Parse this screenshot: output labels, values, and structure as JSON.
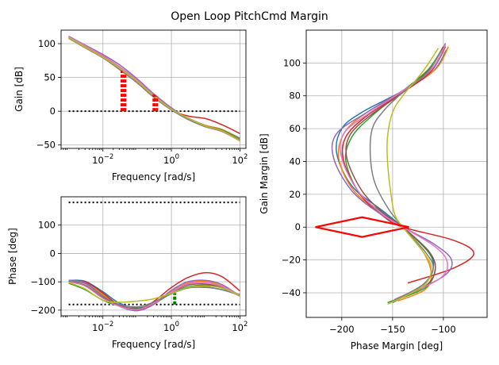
{
  "figure": {
    "title": "Open Loop PitchCmd Margin"
  },
  "colors": {
    "series": [
      "#1f77b4",
      "#ff7f0e",
      "#2ca02c",
      "#d62728",
      "#9467bd",
      "#8c564b",
      "#e377c2",
      "#7f7f7f",
      "#bcbd22"
    ],
    "margin_marker": "#ff0000",
    "phase_marker": "#008000",
    "reference": "#000000",
    "grid": "#b0b0b0"
  },
  "chart_data": [
    {
      "id": "gain",
      "type": "line",
      "xscale": "log",
      "xlabel": "Frequency [rad/s]",
      "ylabel": "Gain [dB]",
      "xlim": [
        0.0006,
        150
      ],
      "ylim": [
        -55,
        120
      ],
      "xticks": [
        0.01,
        1,
        100
      ],
      "xtick_labels": [
        "10",
        "10",
        "10"
      ],
      "xtick_exponents": [
        "−2",
        "0",
        "2"
      ],
      "yticks": [
        -50,
        0,
        50,
        100
      ],
      "ytick_labels": [
        "−50",
        "0",
        "50",
        "100"
      ],
      "grid": true,
      "series": [
        {
          "x": [
            0.001,
            0.003,
            0.01,
            0.03,
            0.1,
            0.3,
            1,
            3,
            10,
            30,
            100
          ],
          "y": [
            109,
            95,
            80,
            63,
            43,
            22,
            3,
            -10,
            -21,
            -27,
            -40
          ]
        },
        {
          "x": [
            0.001,
            0.003,
            0.01,
            0.03,
            0.1,
            0.3,
            1,
            3,
            10,
            30,
            100
          ],
          "y": [
            108,
            94,
            79,
            62,
            42,
            21,
            2,
            -11,
            -21,
            -27,
            -41
          ]
        },
        {
          "x": [
            0.001,
            0.003,
            0.01,
            0.03,
            0.1,
            0.3,
            1,
            3,
            10,
            30,
            100
          ],
          "y": [
            109,
            96,
            81,
            66,
            46,
            24,
            3,
            -11,
            -22,
            -28,
            -42
          ]
        },
        {
          "x": [
            0.001,
            0.003,
            0.01,
            0.03,
            0.1,
            0.3,
            1,
            3,
            10,
            30,
            100
          ],
          "y": [
            110,
            96,
            82,
            66,
            45,
            23,
            2,
            -7,
            -11,
            -20,
            -33
          ]
        },
        {
          "x": [
            0.001,
            0.003,
            0.01,
            0.03,
            0.1,
            0.3,
            1,
            3,
            10,
            30,
            100
          ],
          "y": [
            111,
            98,
            84,
            69,
            48,
            26,
            5,
            -11,
            -23,
            -30,
            -44
          ]
        },
        {
          "x": [
            0.001,
            0.003,
            0.01,
            0.03,
            0.1,
            0.3,
            1,
            3,
            10,
            30,
            100
          ],
          "y": [
            109,
            95,
            80,
            64,
            44,
            22,
            2,
            -11,
            -22,
            -29,
            -43
          ]
        },
        {
          "x": [
            0.001,
            0.003,
            0.01,
            0.03,
            0.1,
            0.3,
            1,
            3,
            10,
            30,
            100
          ],
          "y": [
            110,
            97,
            82,
            66,
            46,
            24,
            3,
            -11,
            -22,
            -29,
            -43
          ]
        },
        {
          "x": [
            0.001,
            0.003,
            0.01,
            0.03,
            0.1,
            0.3,
            1,
            3,
            10,
            30,
            100
          ],
          "y": [
            108,
            94,
            79,
            62,
            42,
            21,
            2,
            -12,
            -23,
            -29,
            -44
          ]
        },
        {
          "x": [
            0.001,
            0.003,
            0.01,
            0.03,
            0.1,
            0.3,
            1,
            3,
            10,
            30,
            100
          ],
          "y": [
            109,
            95,
            80,
            64,
            44,
            23,
            3,
            -10,
            -22,
            -29,
            -44
          ]
        }
      ],
      "reference_lines": [
        {
          "y": 0
        }
      ],
      "margin_markers": [
        {
          "x": 0.035,
          "y_from": 0,
          "y_to": 60
        },
        {
          "x": 0.04,
          "y_from": 0,
          "y_to": 57
        },
        {
          "x": 0.045,
          "y_from": 0,
          "y_to": 54
        },
        {
          "x": 0.3,
          "y_from": 0,
          "y_to": 25
        },
        {
          "x": 0.33,
          "y_from": 0,
          "y_to": 24
        },
        {
          "x": 0.38,
          "y_from": 0,
          "y_to": 22
        }
      ]
    },
    {
      "id": "phase",
      "type": "line",
      "xscale": "log",
      "xlabel": "Frequency [rad/s]",
      "ylabel": "Phase [deg]",
      "xlim": [
        0.0006,
        150
      ],
      "ylim": [
        -220,
        200
      ],
      "xticks": [
        0.01,
        1,
        100
      ],
      "xtick_labels": [
        "10",
        "10",
        "10"
      ],
      "xtick_exponents": [
        "−2",
        "0",
        "2"
      ],
      "yticks": [
        -200,
        -100,
        0,
        100
      ],
      "ytick_labels": [
        "−200",
        "−100",
        "0",
        "100"
      ],
      "grid": true,
      "series": [
        {
          "x": [
            0.001,
            0.003,
            0.01,
            0.03,
            0.1,
            0.3,
            1,
            3,
            10,
            30,
            100
          ],
          "y": [
            -95,
            -98,
            -135,
            -175,
            -192,
            -178,
            -140,
            -118,
            -118,
            -128,
            -145
          ]
        },
        {
          "x": [
            0.001,
            0.003,
            0.01,
            0.03,
            0.1,
            0.3,
            1,
            3,
            10,
            30,
            100
          ],
          "y": [
            -97,
            -105,
            -145,
            -182,
            -198,
            -180,
            -135,
            -105,
            -98,
            -115,
            -150
          ]
        },
        {
          "x": [
            0.001,
            0.003,
            0.01,
            0.03,
            0.1,
            0.3,
            1,
            3,
            10,
            30,
            100
          ],
          "y": [
            -105,
            -128,
            -165,
            -185,
            -195,
            -175,
            -142,
            -118,
            -112,
            -122,
            -150
          ]
        },
        {
          "x": [
            0.001,
            0.003,
            0.01,
            0.03,
            0.1,
            0.3,
            1,
            3,
            10,
            30,
            100
          ],
          "y": [
            -96,
            -100,
            -140,
            -182,
            -200,
            -170,
            -120,
            -85,
            -68,
            -82,
            -132
          ]
        },
        {
          "x": [
            0.001,
            0.003,
            0.01,
            0.03,
            0.1,
            0.3,
            1,
            3,
            10,
            30,
            100
          ],
          "y": [
            -95,
            -103,
            -150,
            -186,
            -202,
            -180,
            -130,
            -100,
            -95,
            -110,
            -150
          ]
        },
        {
          "x": [
            0.001,
            0.003,
            0.01,
            0.03,
            0.1,
            0.3,
            1,
            3,
            10,
            30,
            100
          ],
          "y": [
            -98,
            -112,
            -155,
            -183,
            -196,
            -174,
            -136,
            -112,
            -108,
            -120,
            -146
          ]
        },
        {
          "x": [
            0.001,
            0.003,
            0.01,
            0.03,
            0.1,
            0.3,
            1,
            3,
            10,
            30,
            100
          ],
          "y": [
            -100,
            -115,
            -158,
            -186,
            -198,
            -176,
            -136,
            -108,
            -103,
            -116,
            -148
          ]
        },
        {
          "x": [
            0.001,
            0.003,
            0.01,
            0.03,
            0.1,
            0.3,
            1,
            3,
            10,
            30,
            100
          ],
          "y": [
            -97,
            -106,
            -150,
            -180,
            -188,
            -172,
            -142,
            -122,
            -120,
            -128,
            -148
          ]
        },
        {
          "x": [
            0.001,
            0.003,
            0.01,
            0.03,
            0.1,
            0.3,
            1,
            3,
            10,
            30,
            100
          ],
          "y": [
            -102,
            -125,
            -165,
            -172,
            -168,
            -160,
            -140,
            -120,
            -115,
            -122,
            -148
          ]
        }
      ],
      "reference_lines": [
        {
          "y": 180
        },
        {
          "y": -180
        }
      ],
      "margin_markers": [
        {
          "x": 1.2,
          "y_from": -180,
          "y_to": -142
        },
        {
          "x": 1.3,
          "y_from": -180,
          "y_to": -140
        }
      ]
    },
    {
      "id": "nichols",
      "type": "line",
      "xscale": "linear",
      "xlabel": "Phase Margin [deg]",
      "ylabel": "Gain Margin [dB]",
      "xlim": [
        -235,
        -57
      ],
      "ylim": [
        -55,
        120
      ],
      "xticks": [
        -200,
        -150,
        -100
      ],
      "xtick_labels": [
        "−200",
        "−150",
        "−100"
      ],
      "yticks": [
        -40,
        -20,
        0,
        20,
        40,
        60,
        80,
        100
      ],
      "ytick_labels": [
        "−40",
        "−20",
        "0",
        "20",
        "40",
        "60",
        "80",
        "100"
      ],
      "grid": true,
      "series": [
        {
          "x": [
            -97,
            -110,
            -140,
            -180,
            -200,
            -205,
            -190,
            -160,
            -140,
            -115,
            -110,
            -120,
            -150
          ],
          "y": [
            108,
            95,
            83,
            70,
            60,
            45,
            25,
            10,
            0,
            -15,
            -25,
            -35,
            -46
          ]
        },
        {
          "x": [
            -95,
            -108,
            -140,
            -175,
            -197,
            -203,
            -188,
            -160,
            -140,
            -120,
            -112,
            -118,
            -145
          ],
          "y": [
            110,
            96,
            83,
            70,
            58,
            42,
            22,
            8,
            0,
            -15,
            -28,
            -38,
            -45
          ]
        },
        {
          "x": [
            -100,
            -115,
            -142,
            -170,
            -190,
            -196,
            -182,
            -158,
            -140,
            -115,
            -108,
            -118,
            -155
          ],
          "y": [
            110,
            96,
            82,
            68,
            55,
            40,
            20,
            8,
            0,
            -15,
            -25,
            -37,
            -46
          ]
        },
        {
          "x": [
            -98,
            -112,
            -140,
            -175,
            -196,
            -198,
            -182,
            -160,
            -140,
            -90,
            -70,
            -90,
            -135
          ],
          "y": [
            110,
            95,
            82,
            68,
            55,
            40,
            20,
            7,
            0,
            -8,
            -16,
            -25,
            -34
          ]
        },
        {
          "x": [
            -98,
            -110,
            -138,
            -175,
            -205,
            -208,
            -190,
            -162,
            -140,
            -110,
            -92,
            -100,
            -140
          ],
          "y": [
            112,
            97,
            84,
            70,
            57,
            42,
            22,
            8,
            0,
            -10,
            -20,
            -30,
            -42
          ]
        },
        {
          "x": [
            -100,
            -114,
            -140,
            -172,
            -192,
            -195,
            -180,
            -158,
            -140,
            -114,
            -108,
            -118,
            -150
          ],
          "y": [
            110,
            96,
            82,
            68,
            56,
            42,
            22,
            8,
            0,
            -15,
            -26,
            -36,
            -45
          ]
        },
        {
          "x": [
            -98,
            -112,
            -140,
            -174,
            -198,
            -200,
            -184,
            -160,
            -140,
            -108,
            -96,
            -105,
            -148
          ],
          "y": [
            111,
            96,
            83,
            69,
            57,
            42,
            22,
            8,
            0,
            -12,
            -22,
            -32,
            -44
          ]
        },
        {
          "x": [
            -102,
            -116,
            -142,
            -160,
            -170,
            -172,
            -168,
            -155,
            -140,
            -118,
            -110,
            -120,
            -150
          ],
          "y": [
            108,
            94,
            81,
            70,
            60,
            45,
            28,
            12,
            0,
            -15,
            -25,
            -35,
            -45
          ]
        },
        {
          "x": [
            -105,
            -120,
            -140,
            -150,
            -155,
            -155,
            -152,
            -148,
            -140,
            -120,
            -112,
            -120,
            -155
          ],
          "y": [
            109,
            95,
            80,
            70,
            55,
            40,
            22,
            8,
            0,
            -15,
            -25,
            -36,
            -47
          ]
        }
      ],
      "margin_diamond": [
        [
          -226,
          0
        ],
        [
          -180,
          6
        ],
        [
          -134,
          0
        ],
        [
          -180,
          -6
        ],
        [
          -226,
          0
        ]
      ]
    }
  ]
}
